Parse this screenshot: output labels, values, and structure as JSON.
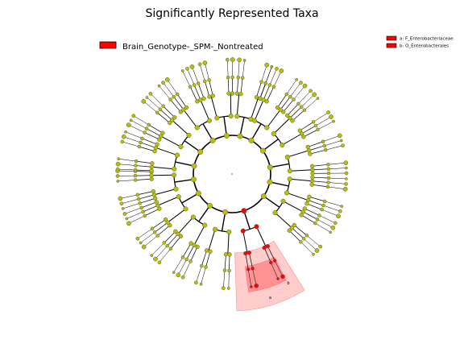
{
  "chart_data": {
    "type": "cladogram",
    "title": "Significantly Represented Taxa",
    "legend": {
      "groups": [
        {
          "name": "Brain_Genotype-_SPM-_Nontreated",
          "color": "#ff0000"
        }
      ],
      "clades": [
        {
          "key": "a: F_Enterobacteriaceae",
          "letter": "a",
          "color": "#ff0000"
        },
        {
          "key": "b: O_Enterobacterales",
          "letter": "b",
          "color": "#ff0000"
        }
      ]
    },
    "node_color": "#b8c000",
    "highlight_color": "#ff0000",
    "tree": {
      "branches": [
        {
          "angle": 100,
          "tips": 4
        },
        {
          "angle": 125,
          "tips": 6
        },
        {
          "angle": 150,
          "tips": 5
        },
        {
          "angle": 172,
          "tips": 5
        },
        {
          "angle": 192,
          "tips": 5
        },
        {
          "angle": 215,
          "tips": 6
        },
        {
          "angle": 240,
          "tips": 6
        },
        {
          "angle": 262,
          "tips": 4
        },
        {
          "angle": 282,
          "tips": 4
        },
        {
          "angle": 300,
          "tips": 5
        },
        {
          "angle": 323,
          "tips": 6
        },
        {
          "angle": 350,
          "tips": 5
        },
        {
          "angle": 12,
          "tips": 6
        },
        {
          "angle": 35,
          "tips": 6
        },
        {
          "angle": 72,
          "tips": 4,
          "highlight": true
        }
      ]
    }
  }
}
